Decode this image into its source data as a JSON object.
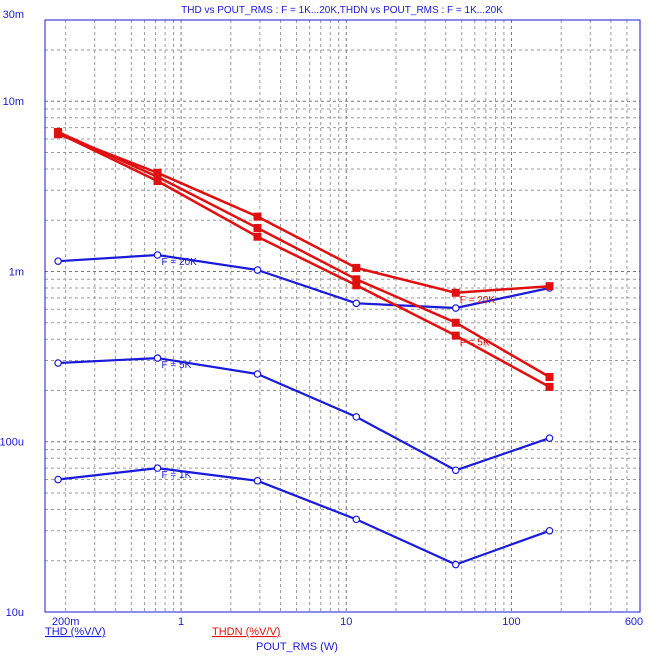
{
  "chart_data": {
    "type": "line",
    "title": "THD vs POUT_RMS : F = 1K...20K,THDN vs POUT_RMS : F = 1K...20K",
    "xlabel": "POUT_RMS (W)",
    "x_scale": "log",
    "y_scale": "log",
    "xlim": [
      0.15,
      600
    ],
    "ylim": [
      1e-05,
      0.03
    ],
    "x_tick_values": [
      0.2,
      1,
      10,
      100,
      600
    ],
    "x_tick_labels": [
      "200m",
      "1",
      "10",
      "100",
      "600"
    ],
    "y_tick_values": [
      1e-05,
      0.0001,
      0.001,
      0.01,
      0.03
    ],
    "y_tick_labels": [
      "10u",
      "100u",
      "1m",
      "10m",
      "30m"
    ],
    "legend": [
      {
        "label": "THD (%V/V)",
        "color": "#1a1adb"
      },
      {
        "label": "THDN (%V/V)",
        "color": "#e01010"
      }
    ],
    "grid": true,
    "series": [
      {
        "group": "THD",
        "color": "#1a1adb",
        "marker": "circle",
        "label": "F = 20K",
        "x": [
          0.18,
          0.72,
          2.9,
          11.5,
          46,
          170
        ],
        "y": [
          0.00115,
          0.00125,
          0.00102,
          0.00065,
          0.00061,
          0.0008
        ]
      },
      {
        "group": "THD",
        "color": "#1a1adb",
        "marker": "circle",
        "label": "F = 5K",
        "x": [
          0.18,
          0.72,
          2.9,
          11.5,
          46,
          170
        ],
        "y": [
          0.00029,
          0.00031,
          0.00025,
          0.00014,
          6.8e-05,
          0.000105
        ]
      },
      {
        "group": "THD",
        "color": "#1a1adb",
        "marker": "circle",
        "label": "F = 1K",
        "x": [
          0.18,
          0.72,
          2.9,
          11.5,
          46,
          170
        ],
        "y": [
          6e-05,
          7e-05,
          5.9e-05,
          3.5e-05,
          1.9e-05,
          3e-05
        ]
      },
      {
        "group": "THDN",
        "color": "#e01010",
        "marker": "square",
        "label": "F = 20K",
        "x": [
          0.18,
          0.72,
          2.9,
          11.5,
          46,
          170
        ],
        "y": [
          0.0064,
          0.0038,
          0.0021,
          0.00105,
          0.00075,
          0.00082
        ]
      },
      {
        "group": "THDN",
        "color": "#e01010",
        "marker": "square",
        "label": "F = 5K",
        "x": [
          0.18,
          0.72,
          2.9,
          11.5,
          46,
          170
        ],
        "y": [
          0.0065,
          0.0034,
          0.0016,
          0.00083,
          0.00042,
          0.00021
        ]
      },
      {
        "group": "THDN",
        "color": "#e01010",
        "marker": "square",
        "label": "",
        "x": [
          0.18,
          0.72,
          2.9,
          11.5,
          46,
          170
        ],
        "y": [
          0.0066,
          0.0036,
          0.0018,
          0.0009,
          0.0005,
          0.00024
        ]
      }
    ]
  }
}
